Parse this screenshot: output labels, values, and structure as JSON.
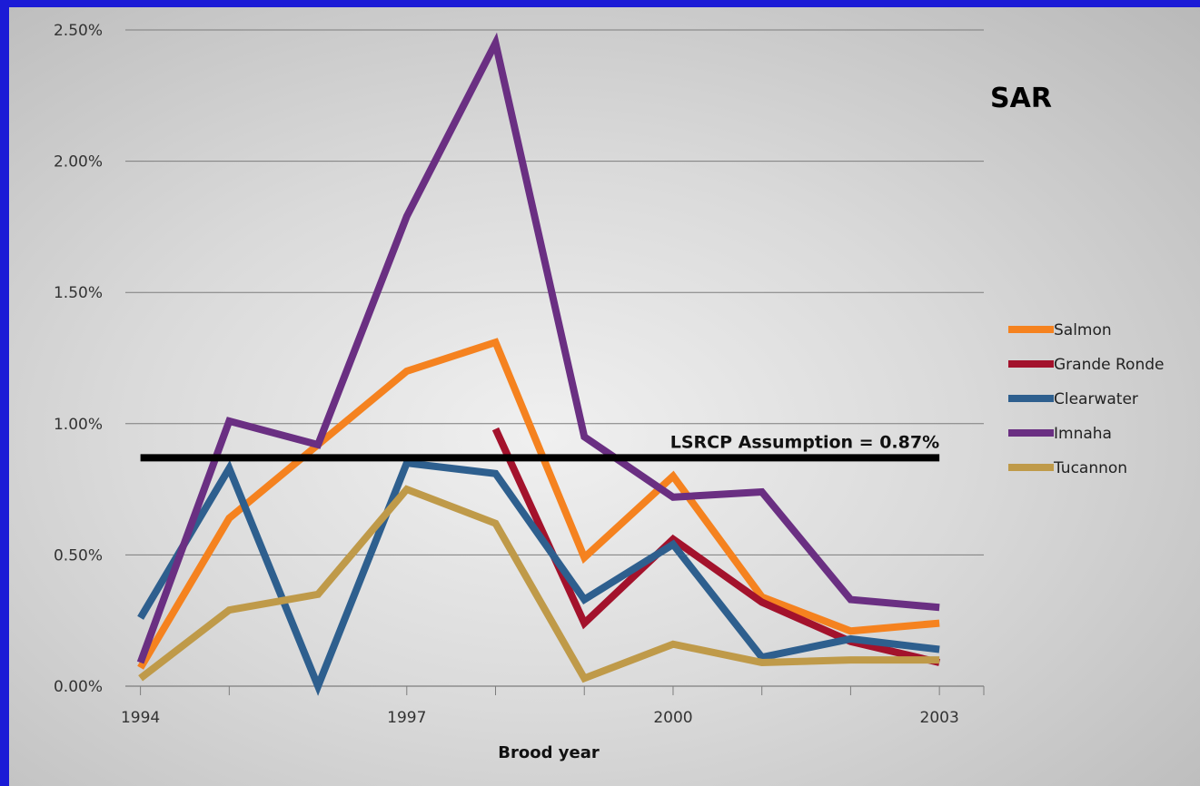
{
  "chart_data": {
    "type": "line",
    "title": "SAR",
    "xlabel": "Brood year",
    "ylabel": "",
    "x": [
      1994,
      1995,
      1996,
      1997,
      1998,
      1999,
      2000,
      2001,
      2002,
      2003
    ],
    "x_ticks": [
      "1994",
      "1997",
      "2000",
      "2003"
    ],
    "xlim": [
      1993.83,
      2003.5
    ],
    "ylim": [
      0,
      0.025
    ],
    "y_ticks": [
      "0.00%",
      "0.50%",
      "1.00%",
      "1.50%",
      "2.00%",
      "2.50%"
    ],
    "y_tick_values": [
      0,
      0.005,
      0.01,
      0.015,
      0.02,
      0.025
    ],
    "grid": true,
    "legend_position": "right",
    "series": [
      {
        "name": "Salmon",
        "color": "#f5821f",
        "values": [
          0.0007,
          0.0064,
          0.0092,
          0.012,
          0.0131,
          0.0049,
          0.008,
          0.0034,
          0.0021,
          0.0024
        ]
      },
      {
        "name": "Grande Ronde",
        "color": "#a3122c",
        "values": [
          null,
          null,
          null,
          null,
          0.0098,
          0.0024,
          0.0056,
          0.0032,
          0.0017,
          0.0009
        ]
      },
      {
        "name": "Clearwater",
        "color": "#2e5f8e",
        "values": [
          0.0026,
          0.0083,
          0.0,
          0.0085,
          0.0081,
          0.0033,
          0.0054,
          0.0011,
          0.0018,
          0.0014
        ]
      },
      {
        "name": "Imnaha",
        "color": "#6a2f82",
        "values": [
          0.0009,
          0.0101,
          0.0092,
          0.0179,
          0.0245,
          0.0095,
          0.0072,
          0.0074,
          0.0033,
          0.003
        ]
      },
      {
        "name": "Tucannon",
        "color": "#bf9a49",
        "values": [
          0.0003,
          0.0029,
          0.0035,
          0.0075,
          0.0062,
          0.0003,
          0.0016,
          0.0009,
          0.001,
          0.001
        ]
      }
    ],
    "reference_line": {
      "label": "LSRCP Assumption = 0.87%",
      "value": 0.0087,
      "x_from": 1994,
      "x_to": 2003,
      "color": "#000000"
    }
  }
}
